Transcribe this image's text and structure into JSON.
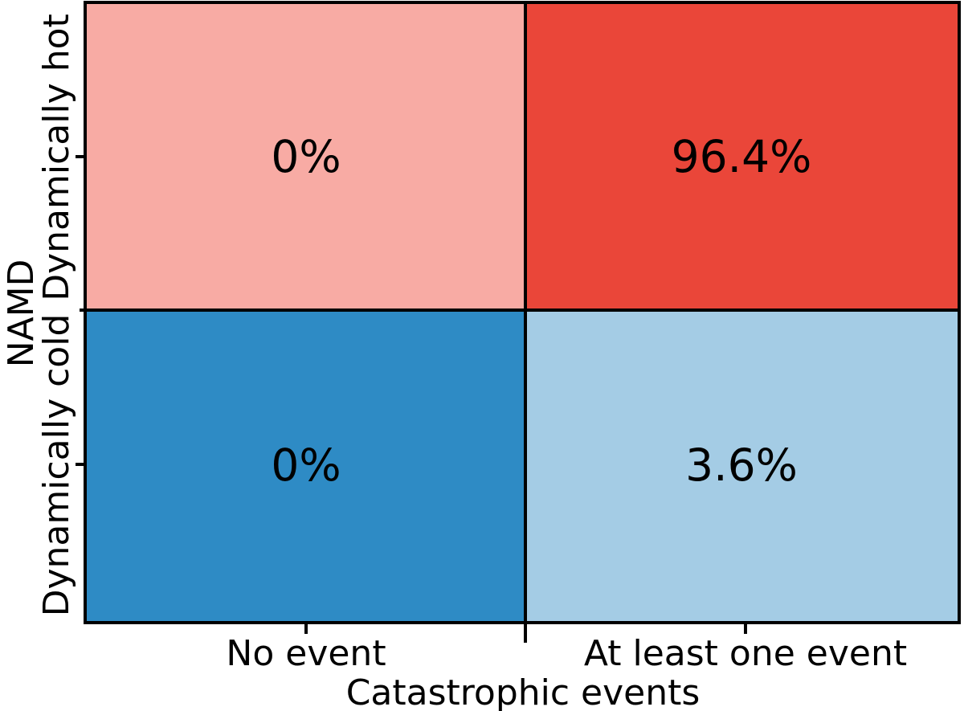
{
  "chart_data": {
    "type": "heatmap",
    "title": "",
    "xlabel": "Catastrophic events",
    "ylabel": "NAMD",
    "x_categories": [
      "No event",
      "At least one event"
    ],
    "y_categories": [
      "Dynamically hot",
      "Dynamically cold"
    ],
    "values_numeric": [
      [
        0,
        96.4
      ],
      [
        0,
        3.6
      ]
    ],
    "rows": [
      {
        "y": "Dynamically hot",
        "cells": [
          {
            "x": "No event",
            "label": "0%",
            "value": 0,
            "color": "#F8ABA4"
          },
          {
            "x": "At least one event",
            "label": "96.4%",
            "value": 96.4,
            "color": "#EA4639"
          }
        ]
      },
      {
        "y": "Dynamically cold",
        "cells": [
          {
            "x": "No event",
            "label": "0%",
            "value": 0,
            "color": "#2E8BC5"
          },
          {
            "x": "At least one event",
            "label": "3.6%",
            "value": 3.6,
            "color": "#A4CCE5"
          }
        ]
      }
    ],
    "colors": {
      "border": "#000000",
      "text": "#000000",
      "background": "#FFFFFF"
    },
    "legend": "none",
    "grid": "off"
  }
}
